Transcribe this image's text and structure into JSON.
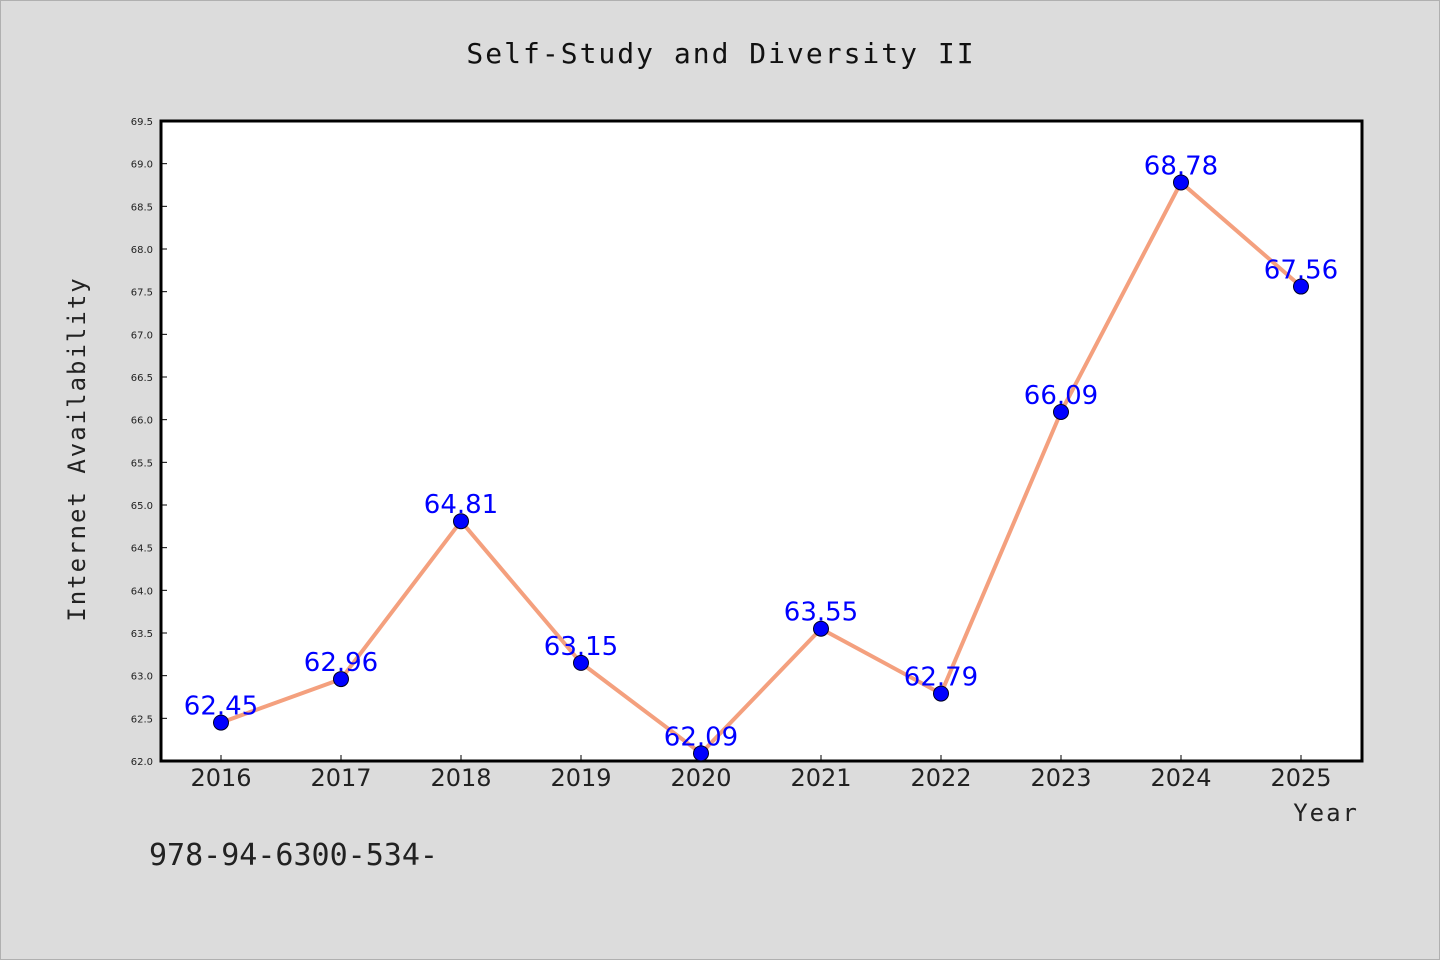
{
  "colors": {
    "line": "#f4a07e",
    "marker": "#0000ff",
    "data_label": "#0000ff",
    "plot_background": "#ffffff",
    "figure_background": "#dcdcdc"
  },
  "footer_text": "978-94-6300-534-",
  "chart_data": {
    "type": "line",
    "title": "Self-Study and Diversity II",
    "xlabel": "Year",
    "ylabel": "Internet Availability",
    "x": [
      "2016",
      "2017",
      "2018",
      "2019",
      "2020",
      "2021",
      "2022",
      "2023",
      "2024",
      "2025"
    ],
    "series": [
      {
        "values": [
          62.45,
          62.96,
          64.81,
          63.15,
          62.09,
          63.55,
          62.79,
          66.09,
          68.78,
          67.56
        ],
        "labels": [
          "62.45",
          "62.96",
          "64.81",
          "63.15",
          "62.09",
          "63.55",
          "62.79",
          "66.09",
          "68.78",
          "67.56"
        ]
      }
    ],
    "ylim": [
      62.0,
      69.5
    ],
    "yticks": [
      "62.0",
      "62.5",
      "63.0",
      "63.5",
      "64.0",
      "64.5",
      "65.0",
      "65.5",
      "66.0",
      "66.5",
      "67.0",
      "67.5",
      "68.0",
      "68.5",
      "69.0",
      "69.5"
    ],
    "grid": false,
    "legend": "none",
    "marker": "circle"
  }
}
